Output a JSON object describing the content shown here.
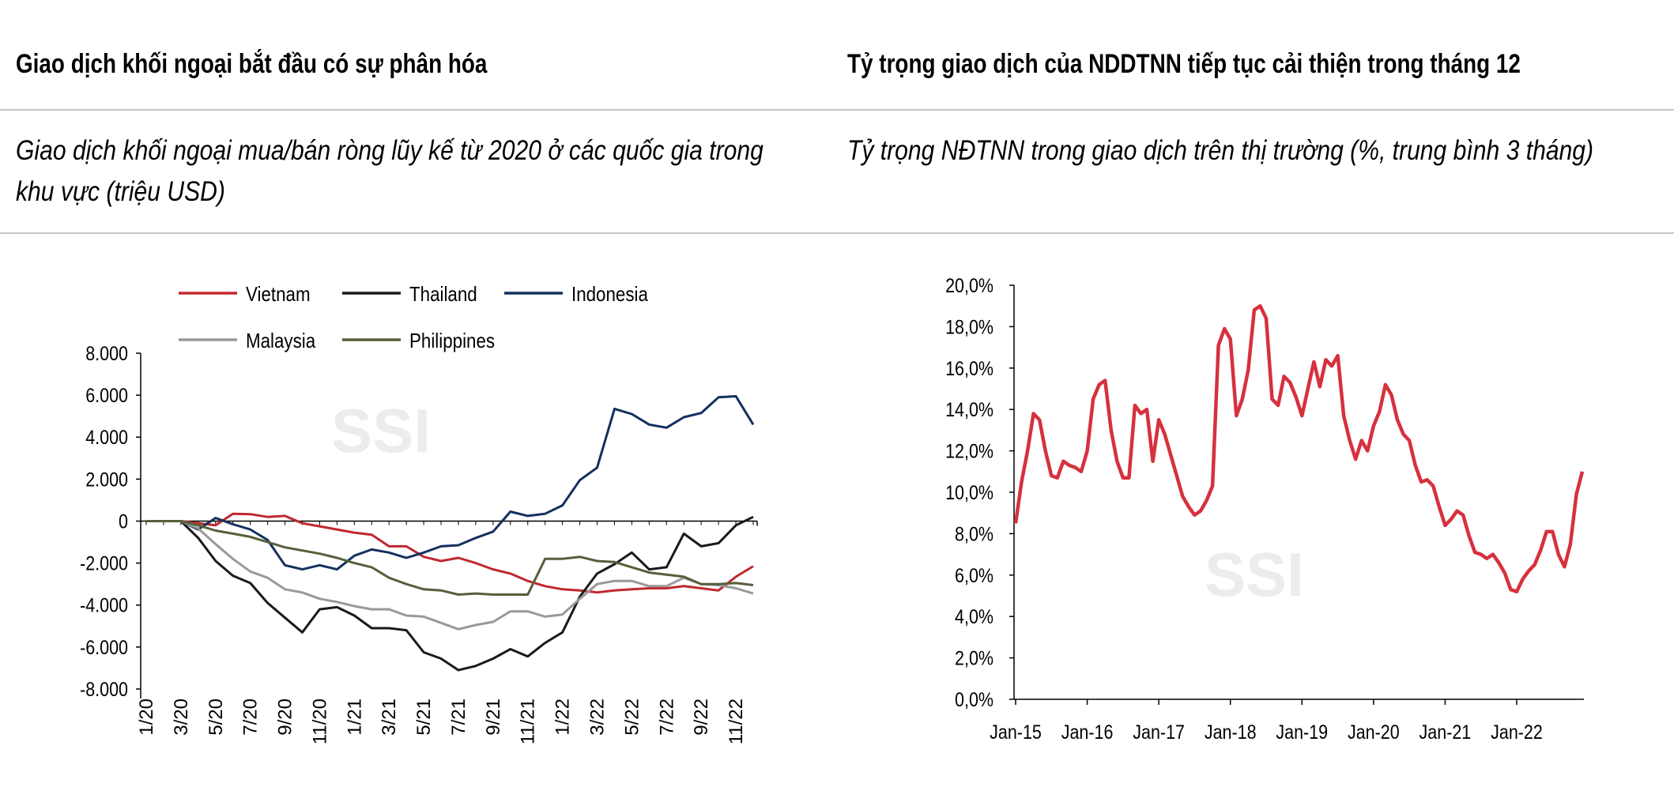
{
  "left_panel": {
    "header": "Giao dịch khối ngoại bắt đầu có sự phân hóa",
    "subtitle_line1": "Giao dịch khối ngoại mua/bán ròng lũy kế từ 2020 ở các quốc gia trong",
    "subtitle_line2": "khu vực (triệu USD)",
    "watermark": "SSI"
  },
  "right_panel": {
    "header": "Tỷ trọng giao dịch của NDDTNN tiếp tục cải thiện trong tháng 12",
    "subtitle_line1": "Tỷ trọng NĐTNN trong giao dịch trên thị trường (%, trung bình 3 tháng)",
    "watermark": "SSI"
  },
  "chart_data": [
    {
      "type": "line",
      "title": "",
      "xlabel": "",
      "ylabel": "",
      "ylim": [
        -8000,
        8000
      ],
      "y_ticks": [
        8000,
        6000,
        4000,
        2000,
        0,
        -2000,
        -4000,
        -6000,
        -8000
      ],
      "y_tick_labels": [
        "8.000",
        "6.000",
        "4.000",
        "2.000",
        "0",
        "-2.000",
        "-4.000",
        "-6.000",
        "-8.000"
      ],
      "x_tick_labels": [
        "1/20",
        "3/20",
        "5/20",
        "7/20",
        "9/20",
        "11/20",
        "1/21",
        "3/21",
        "5/21",
        "7/21",
        "9/21",
        "11/21",
        "1/22",
        "3/22",
        "5/22",
        "7/22",
        "9/22",
        "11/22"
      ],
      "x_points": 36,
      "legend_position": "top",
      "grid": false,
      "series": [
        {
          "name": "Vietnam",
          "color": "#c0282d",
          "values": [
            0,
            0,
            0,
            -100,
            -200,
            350,
            330,
            200,
            250,
            -100,
            -250,
            -400,
            -550,
            -650,
            -1200,
            -1200,
            -1700,
            -1900,
            -1750,
            -2000,
            -2300,
            -2500,
            -2850,
            -3100,
            -3250,
            -3300,
            -3400,
            -3300,
            -3250,
            -3200,
            -3200,
            -3100,
            -3200,
            -3300,
            -2650,
            -2150
          ]
        },
        {
          "name": "Thailand",
          "color": "#1a1a1a",
          "values": [
            0,
            0,
            0,
            -800,
            -1900,
            -2600,
            -2950,
            -3900,
            -4600,
            -5300,
            -4200,
            -4100,
            -4500,
            -5100,
            -5100,
            -5200,
            -6250,
            -6550,
            -7100,
            -6900,
            -6550,
            -6100,
            -6450,
            -5800,
            -5300,
            -3600,
            -2500,
            -2050,
            -1500,
            -2300,
            -2200,
            -600,
            -1200,
            -1050,
            -200,
            200
          ]
        },
        {
          "name": "Indonesia",
          "color": "#14305e",
          "values": [
            0,
            0,
            0,
            -400,
            150,
            -150,
            -400,
            -900,
            -2100,
            -2300,
            -2100,
            -2300,
            -1650,
            -1350,
            -1500,
            -1750,
            -1500,
            -1200,
            -1150,
            -800,
            -500,
            450,
            250,
            350,
            750,
            1950,
            2550,
            5350,
            5100,
            4600,
            4450,
            4950,
            5150,
            5900,
            5950,
            4600
          ]
        },
        {
          "name": "Malaysia",
          "color": "#999999",
          "values": [
            0,
            0,
            0,
            -350,
            -1100,
            -1800,
            -2400,
            -2700,
            -3250,
            -3400,
            -3700,
            -3850,
            -4050,
            -4200,
            -4200,
            -4500,
            -4550,
            -4850,
            -5150,
            -4950,
            -4800,
            -4300,
            -4300,
            -4550,
            -4450,
            -3700,
            -3000,
            -2850,
            -2850,
            -3100,
            -3100,
            -2700,
            -3000,
            -3050,
            -3200,
            -3450
          ]
        },
        {
          "name": "Philippines",
          "color": "#55603a",
          "values": [
            0,
            0,
            0,
            -200,
            -450,
            -600,
            -750,
            -1000,
            -1250,
            -1400,
            -1550,
            -1750,
            -2000,
            -2200,
            -2700,
            -3000,
            -3250,
            -3300,
            -3500,
            -3450,
            -3500,
            -3500,
            -3500,
            -1800,
            -1800,
            -1700,
            -1900,
            -1950,
            -2200,
            -2450,
            -2550,
            -2650,
            -3000,
            -3000,
            -2950,
            -3050
          ]
        }
      ]
    },
    {
      "type": "line",
      "title": "",
      "xlabel": "",
      "ylabel": "",
      "ylim": [
        0,
        20
      ],
      "y_ticks": [
        0,
        2,
        4,
        6,
        8,
        10,
        12,
        14,
        16,
        18,
        20
      ],
      "y_tick_labels": [
        "0,0%",
        "2,0%",
        "4,0%",
        "6,0%",
        "8,0%",
        "10,0%",
        "12,0%",
        "14,0%",
        "16,0%",
        "18,0%",
        "20,0%"
      ],
      "x_tick_labels": [
        "Jan-15",
        "Jan-16",
        "Jan-17",
        "Jan-18",
        "Jan-19",
        "Jan-20",
        "Jan-21",
        "Jan-22"
      ],
      "x_start": "Jan-15",
      "x_points": 96,
      "grid": false,
      "series": [
        {
          "name": "",
          "color": "#d6313d",
          "values": [
            8.5,
            10.5,
            12.0,
            13.8,
            13.5,
            12.0,
            10.8,
            10.7,
            11.5,
            11.3,
            11.2,
            11.0,
            12.0,
            14.5,
            15.2,
            15.4,
            13.0,
            11.5,
            10.7,
            10.7,
            14.2,
            13.8,
            14.0,
            11.5,
            13.5,
            12.8,
            11.8,
            10.8,
            9.8,
            9.3,
            8.9,
            9.1,
            9.6,
            10.3,
            17.1,
            17.9,
            17.4,
            13.7,
            14.5,
            15.9,
            18.8,
            19.0,
            18.4,
            14.5,
            14.2,
            15.6,
            15.3,
            14.6,
            13.7,
            15.0,
            16.3,
            15.1,
            16.4,
            16.1,
            16.6,
            13.7,
            12.5,
            11.6,
            12.5,
            12.0,
            13.2,
            13.9,
            15.2,
            14.7,
            13.5,
            12.8,
            12.5,
            11.3,
            10.5,
            10.6,
            10.3,
            9.3,
            8.4,
            8.7,
            9.1,
            8.9,
            7.9,
            7.1,
            7.0,
            6.8,
            7.0,
            6.6,
            6.1,
            5.3,
            5.2,
            5.8,
            6.2,
            6.5,
            7.2,
            8.1,
            8.1,
            7.0,
            6.4,
            7.5,
            9.9,
            11.0
          ]
        }
      ]
    }
  ]
}
